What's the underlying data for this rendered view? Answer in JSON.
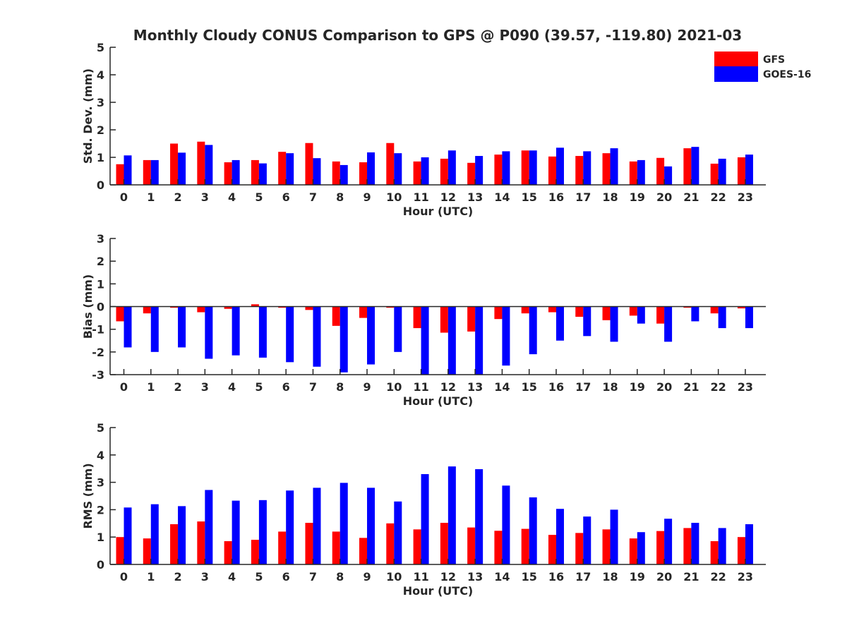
{
  "figure_title": "Monthly Cloudy CONUS Comparison to GPS @ P090 (39.57, -119.80) 2021-03",
  "colors": {
    "GFS": "#ff0000",
    "GOES-16": "#0000ff",
    "axis": "#262626"
  },
  "legend": [
    {
      "label": "GFS",
      "color": "#ff0000"
    },
    {
      "label": "GOES-16",
      "color": "#0000ff"
    }
  ],
  "chart_data": [
    {
      "type": "bar",
      "title": "Monthly Cloudy CONUS Comparison to GPS @ P090 (39.57, -119.80) 2021-03",
      "xlabel": "Hour (UTC)",
      "ylabel": "Std. Dev. (mm)",
      "ylim": [
        0,
        5
      ],
      "yticks": [
        0,
        1,
        2,
        3,
        4,
        5
      ],
      "categories": [
        "0",
        "1",
        "2",
        "3",
        "4",
        "5",
        "6",
        "7",
        "8",
        "9",
        "10",
        "11",
        "12",
        "13",
        "14",
        "15",
        "16",
        "17",
        "18",
        "19",
        "20",
        "21",
        "22",
        "23"
      ],
      "series": [
        {
          "name": "GFS",
          "values": [
            0.75,
            0.9,
            1.5,
            1.57,
            0.82,
            0.9,
            1.2,
            1.52,
            0.85,
            0.82,
            1.52,
            0.85,
            0.95,
            0.8,
            1.1,
            1.25,
            1.03,
            1.05,
            1.15,
            0.85,
            0.98,
            1.33,
            0.77,
            1.0
          ]
        },
        {
          "name": "GOES-16",
          "values": [
            1.07,
            0.9,
            1.17,
            1.45,
            0.9,
            0.78,
            1.15,
            0.97,
            0.72,
            1.18,
            1.15,
            1.0,
            1.25,
            1.05,
            1.22,
            1.25,
            1.35,
            1.22,
            1.33,
            0.9,
            0.67,
            1.38,
            0.95,
            1.1
          ]
        }
      ]
    },
    {
      "type": "bar",
      "title": "",
      "xlabel": "Hour (UTC)",
      "ylabel": "Bias (mm)",
      "ylim": [
        -3,
        3
      ],
      "yticks": [
        -3,
        -2,
        -1,
        0,
        1,
        2,
        3
      ],
      "categories": [
        "0",
        "1",
        "2",
        "3",
        "4",
        "5",
        "6",
        "7",
        "8",
        "9",
        "10",
        "11",
        "12",
        "13",
        "14",
        "15",
        "16",
        "17",
        "18",
        "19",
        "20",
        "21",
        "22",
        "23"
      ],
      "series": [
        {
          "name": "GFS",
          "values": [
            -0.65,
            -0.3,
            -0.05,
            -0.25,
            -0.1,
            0.1,
            -0.05,
            -0.15,
            -0.85,
            -0.5,
            -0.05,
            -0.95,
            -1.15,
            -1.1,
            -0.55,
            -0.3,
            -0.25,
            -0.45,
            -0.6,
            -0.4,
            -0.75,
            -0.05,
            -0.3,
            -0.08
          ]
        },
        {
          "name": "GOES-16",
          "values": [
            -1.8,
            -2.0,
            -1.8,
            -2.3,
            -2.15,
            -2.25,
            -2.45,
            -2.65,
            -2.9,
            -2.55,
            -2.0,
            -3.0,
            -3.0,
            -3.0,
            -2.6,
            -2.1,
            -1.5,
            -1.3,
            -1.55,
            -0.75,
            -1.55,
            -0.65,
            -0.95,
            -0.95
          ]
        }
      ]
    },
    {
      "type": "bar",
      "title": "",
      "xlabel": "Hour (UTC)",
      "ylabel": "RMS (mm)",
      "ylim": [
        0,
        5
      ],
      "yticks": [
        0,
        1,
        2,
        3,
        4,
        5
      ],
      "categories": [
        "0",
        "1",
        "2",
        "3",
        "4",
        "5",
        "6",
        "7",
        "8",
        "9",
        "10",
        "11",
        "12",
        "13",
        "14",
        "15",
        "16",
        "17",
        "18",
        "19",
        "20",
        "21",
        "22",
        "23"
      ],
      "series": [
        {
          "name": "GFS",
          "values": [
            1.0,
            0.95,
            1.47,
            1.57,
            0.85,
            0.9,
            1.2,
            1.52,
            1.2,
            0.97,
            1.5,
            1.28,
            1.52,
            1.35,
            1.23,
            1.3,
            1.08,
            1.15,
            1.28,
            0.95,
            1.22,
            1.33,
            0.85,
            1.0
          ]
        },
        {
          "name": "GOES-16",
          "values": [
            2.08,
            2.2,
            2.13,
            2.72,
            2.33,
            2.35,
            2.7,
            2.8,
            2.98,
            2.8,
            2.3,
            3.3,
            3.58,
            3.48,
            2.88,
            2.45,
            2.03,
            1.75,
            2.0,
            1.18,
            1.67,
            1.52,
            1.33,
            1.47
          ]
        }
      ]
    }
  ]
}
